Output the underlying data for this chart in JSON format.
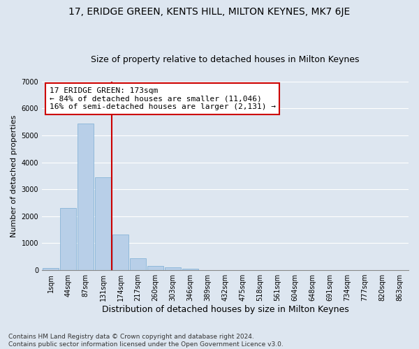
{
  "title": "17, ERIDGE GREEN, KENTS HILL, MILTON KEYNES, MK7 6JE",
  "subtitle": "Size of property relative to detached houses in Milton Keynes",
  "xlabel": "Distribution of detached houses by size in Milton Keynes",
  "ylabel": "Number of detached properties",
  "categories": [
    "1sqm",
    "44sqm",
    "87sqm",
    "131sqm",
    "174sqm",
    "217sqm",
    "260sqm",
    "303sqm",
    "346sqm",
    "389sqm",
    "432sqm",
    "475sqm",
    "518sqm",
    "561sqm",
    "604sqm",
    "648sqm",
    "691sqm",
    "734sqm",
    "777sqm",
    "820sqm",
    "863sqm"
  ],
  "bar_heights": [
    80,
    2300,
    5450,
    3450,
    1320,
    440,
    170,
    95,
    65,
    0,
    0,
    0,
    0,
    0,
    0,
    0,
    0,
    0,
    0,
    0,
    0
  ],
  "bar_color": "#b8cfe8",
  "bar_edgecolor": "#7aadd4",
  "background_color": "#dde6f0",
  "grid_color": "#ffffff",
  "vline_color": "#cc0000",
  "annotation_text": "17 ERIDGE GREEN: 173sqm\n← 84% of detached houses are smaller (11,046)\n16% of semi-detached houses are larger (2,131) →",
  "annotation_box_color": "#ffffff",
  "annotation_box_edgecolor": "#cc0000",
  "ylim": [
    0,
    7000
  ],
  "yticks": [
    0,
    1000,
    2000,
    3000,
    4000,
    5000,
    6000,
    7000
  ],
  "footer": "Contains HM Land Registry data © Crown copyright and database right 2024.\nContains public sector information licensed under the Open Government Licence v3.0.",
  "title_fontsize": 10,
  "subtitle_fontsize": 9,
  "xlabel_fontsize": 9,
  "ylabel_fontsize": 8,
  "tick_fontsize": 7,
  "annotation_fontsize": 8
}
